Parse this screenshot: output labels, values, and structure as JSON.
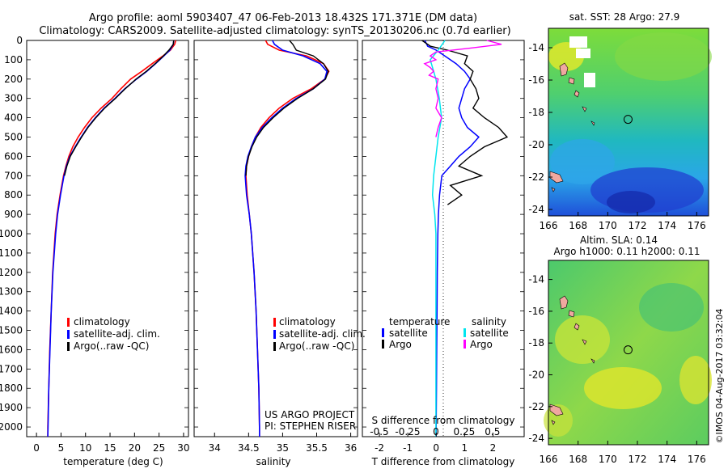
{
  "title": {
    "line1": "Argo profile: aoml 5903407_47 06-Feb-2013 18.432S 171.371E (DM data)",
    "line2": "Climatology: CARS2009. Satellite-adjusted climatology: synTS_20130206.nc (0.7d earlier)"
  },
  "colors": {
    "climatology": "#ff0000",
    "satellite": "#0000ff",
    "argo": "#000000",
    "sat_salinity": "#00e5ee",
    "argo_salinity": "#ff00ff"
  },
  "depth_ticks": [
    "0",
    "100",
    "200",
    "300",
    "400",
    "500",
    "600",
    "700",
    "800",
    "900",
    "1000",
    "1100",
    "1200",
    "1300",
    "1400",
    "1500",
    "1600",
    "1700",
    "1800",
    "1900",
    "2000"
  ],
  "panels": {
    "temperature": {
      "xlabel": "temperature (deg C)",
      "xticks": [
        "0",
        "5",
        "10",
        "15",
        "20",
        "25",
        "30"
      ],
      "legend": [
        "climatology",
        "satellite-adj. clim.",
        "Argo(..raw -QC)"
      ]
    },
    "salinity": {
      "xlabel": "salinity",
      "xticks": [
        "34",
        "34.5",
        "35",
        "35.5",
        "36"
      ],
      "legend": [
        "climatology",
        "satellite-adj. clim.",
        "Argo(..raw -QC)"
      ],
      "project": "US ARGO PROJECT",
      "pi": "PI: STEPHEN RISER"
    },
    "difference": {
      "top_xticks": [
        "-0.5",
        "-0.25",
        "0",
        "0.25",
        "0.5"
      ],
      "bottom_xticks": [
        "-2",
        "-1",
        "0",
        "1",
        "2"
      ],
      "top_label": "S difference from climatology",
      "xlabel": "T difference from climatology",
      "legend_left_title": "temperature",
      "legend_right_title": "salinity",
      "legend_left": [
        "satellite",
        "Argo"
      ],
      "legend_right": [
        "satellite",
        "Argo"
      ]
    }
  },
  "maps": {
    "sst_title": "sat. SST: 28 Argo: 27.9",
    "sla_title": "Altim. SLA: 0.14",
    "sla_subtitle": "Argo h1000: 0.11 h2000: 0.11",
    "lat_ticks": [
      "-14",
      "-16",
      "-18",
      "-20",
      "-22",
      "-24"
    ],
    "lon_ticks": [
      "166",
      "168",
      "170",
      "172",
      "174",
      "176"
    ],
    "footer": "©IMOS 04-Aug-2017 03:32:04"
  },
  "chart_data": {
    "type": "line",
    "depth_range": [
      0,
      2050
    ],
    "temperature": {
      "xlim": [
        -2,
        31
      ],
      "climatology": {
        "depth": [
          0,
          20,
          50,
          80,
          120,
          160,
          200,
          250,
          300,
          350,
          400,
          450,
          500,
          550,
          600,
          650,
          700,
          800,
          900,
          1000,
          1200,
          1400,
          1600,
          1800,
          2000,
          2050
        ],
        "values": [
          28.4,
          28.2,
          27.3,
          25.8,
          23.6,
          21.5,
          19.2,
          17.2,
          15.4,
          13.2,
          11.3,
          9.8,
          8.5,
          7.4,
          6.6,
          6.0,
          5.5,
          4.8,
          4.2,
          3.8,
          3.3,
          3.0,
          2.7,
          2.5,
          2.3,
          2.3
        ]
      },
      "satellite": {
        "depth": [
          0,
          20,
          50,
          80,
          120,
          160,
          200,
          250,
          300,
          350,
          400,
          450,
          500,
          550,
          600,
          650,
          700,
          800,
          900,
          1000,
          1200,
          1400,
          1600,
          1800,
          2000,
          2050
        ],
        "values": [
          28.0,
          27.9,
          27.2,
          26.0,
          24.3,
          22.5,
          20.4,
          18.0,
          16.0,
          13.8,
          12.0,
          10.4,
          9.1,
          7.9,
          6.8,
          6.1,
          5.6,
          4.9,
          4.3,
          3.9,
          3.35,
          3.0,
          2.75,
          2.5,
          2.35,
          2.3
        ]
      },
      "argo": {
        "depth": [
          0,
          20,
          50,
          80,
          120,
          160,
          200,
          250,
          300,
          350,
          400,
          450,
          500,
          550,
          600,
          650,
          700
        ],
        "values": [
          28.0,
          27.9,
          27.0,
          25.9,
          24.2,
          22.4,
          20.3,
          18.1,
          16.1,
          13.9,
          12.1,
          10.5,
          9.2,
          8.0,
          6.9,
          6.2,
          5.7
        ]
      }
    },
    "salinity": {
      "xlim": [
        33.7,
        36.1
      ],
      "climatology": {
        "depth": [
          0,
          20,
          50,
          80,
          120,
          160,
          200,
          250,
          300,
          350,
          400,
          450,
          500,
          550,
          600,
          650,
          700,
          800,
          900,
          1000,
          1200,
          1400,
          1600,
          1800,
          2000,
          2050
        ],
        "values": [
          34.75,
          34.78,
          34.95,
          35.35,
          35.6,
          35.68,
          35.62,
          35.42,
          35.15,
          34.95,
          34.8,
          34.68,
          34.6,
          34.54,
          34.5,
          34.47,
          34.46,
          34.48,
          34.51,
          34.54,
          34.58,
          34.61,
          34.63,
          34.65,
          34.66,
          34.66
        ]
      },
      "satellite": {
        "depth": [
          0,
          20,
          50,
          80,
          120,
          160,
          200,
          250,
          300,
          350,
          400,
          450,
          500,
          550,
          600,
          650,
          700,
          800,
          900,
          1000,
          1200,
          1400,
          1600,
          1800,
          2000,
          2050
        ],
        "values": [
          34.85,
          34.88,
          35.0,
          35.3,
          35.55,
          35.65,
          35.62,
          35.45,
          35.2,
          35.0,
          34.84,
          34.7,
          34.6,
          34.54,
          34.49,
          34.46,
          34.45,
          34.47,
          34.51,
          34.54,
          34.58,
          34.61,
          34.63,
          34.65,
          34.66,
          34.66
        ]
      },
      "argo": {
        "depth": [
          0,
          20,
          50,
          80,
          120,
          160,
          200,
          250,
          300,
          350,
          400,
          450,
          500,
          550,
          600,
          650,
          700
        ],
        "values": [
          35.1,
          35.15,
          35.2,
          35.45,
          35.6,
          35.67,
          35.63,
          35.45,
          35.22,
          35.02,
          34.86,
          34.72,
          34.62,
          34.55,
          34.5,
          34.47,
          34.46
        ]
      }
    },
    "difference": {
      "xlim_t": [
        -2.6,
        3.1
      ],
      "xlim_s": [
        -0.65,
        0.78
      ],
      "temp_satellite": {
        "depth": [
          0,
          30,
          50,
          80,
          120,
          160,
          200,
          250,
          300,
          350,
          400,
          450,
          500,
          550,
          600,
          650,
          700,
          800,
          900,
          1000,
          1200,
          1400,
          1600,
          1800,
          2000,
          2050
        ],
        "values": [
          -0.4,
          -0.3,
          0.0,
          0.3,
          0.7,
          1.0,
          1.2,
          1.0,
          0.9,
          0.8,
          0.9,
          1.1,
          1.5,
          1.2,
          0.8,
          0.5,
          0.2,
          0.12,
          0.08,
          0.06,
          0.04,
          0.03,
          0.02,
          0.01,
          0.0,
          0.0
        ]
      },
      "temp_argo": {
        "depth": [
          0,
          30,
          50,
          80,
          120,
          160,
          200,
          250,
          300,
          350,
          400,
          450,
          500,
          550,
          600,
          650,
          700,
          750,
          800,
          850
        ],
        "values": [
          -0.5,
          -0.2,
          0.4,
          1.1,
          1.0,
          1.3,
          1.2,
          1.4,
          1.5,
          1.3,
          1.7,
          2.2,
          2.5,
          1.7,
          1.2,
          0.8,
          1.6,
          0.5,
          0.9,
          0.4
        ]
      },
      "sal_satellite": {
        "depth": [
          0,
          50,
          100,
          200,
          300,
          400,
          500,
          600,
          700,
          800,
          900,
          1000,
          1200,
          1400,
          1600,
          1800,
          2000,
          2050
        ],
        "values": [
          0.08,
          0.02,
          -0.05,
          0.0,
          0.03,
          0.05,
          0.02,
          0.0,
          -0.02,
          -0.03,
          -0.01,
          0.0,
          0.0,
          0.0,
          0.0,
          0.0,
          0.0,
          0.0
        ]
      },
      "sal_argo": {
        "depth": [
          0,
          20,
          40,
          60,
          80,
          100,
          120,
          140,
          160,
          180,
          200,
          250,
          300,
          350,
          400,
          450,
          500
        ],
        "values": [
          0.45,
          0.58,
          0.3,
          0.0,
          -0.05,
          0.0,
          -0.1,
          -0.05,
          -0.02,
          -0.06,
          0.02,
          0.0,
          0.02,
          0.0,
          0.05,
          0.02,
          0.0
        ]
      }
    },
    "map_float_position": {
      "lon": 171.37,
      "lat": -18.43
    }
  }
}
